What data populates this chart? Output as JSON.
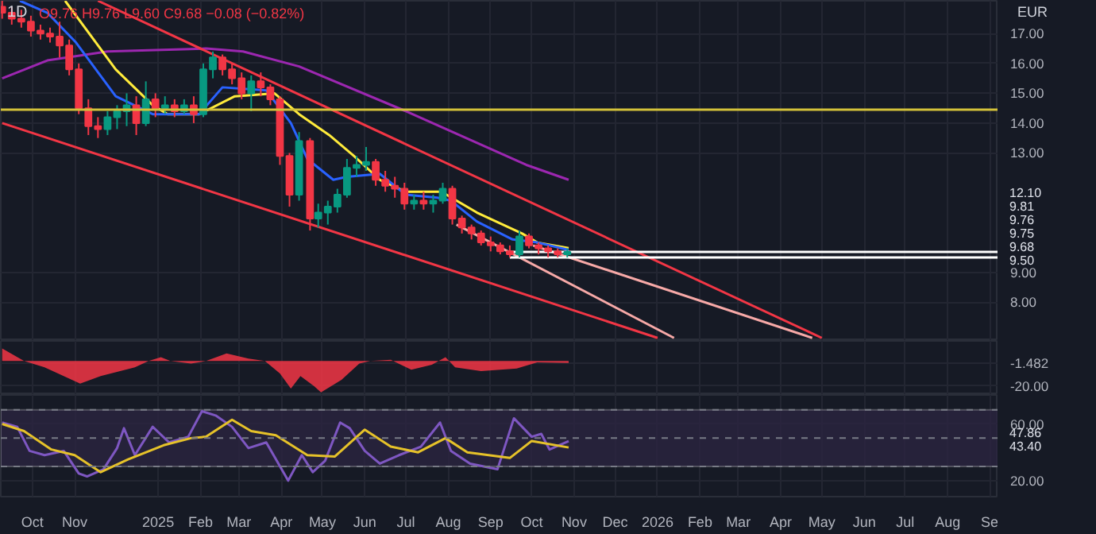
{
  "chart_data": [
    {
      "type": "candlestick",
      "title": "1D",
      "subtitle": "O9.76 H9.76 L9.60 C9.68 −0.08 (−0.82%)",
      "ylabel": "EUR",
      "annotations": [
        "12.10",
        "9.81",
        "9.76",
        "9.75",
        "9.68",
        "9.50"
      ],
      "x": [
        "2024-09-09",
        "2024-09-16",
        "2024-09-23",
        "2024-09-30",
        "2024-10-07",
        "2024-10-14",
        "2024-10-21",
        "2024-10-28",
        "2024-11-04",
        "2024-11-11",
        "2024-11-18",
        "2024-11-25",
        "2024-12-02",
        "2024-12-09",
        "2024-12-16",
        "2024-12-23",
        "2024-12-30",
        "2025-01-06",
        "2025-01-13",
        "2025-01-20",
        "2025-01-27",
        "2025-02-03",
        "2025-02-10",
        "2025-02-17",
        "2025-02-24",
        "2025-03-03",
        "2025-03-10",
        "2025-03-17",
        "2025-03-24",
        "2025-03-31",
        "2025-04-07",
        "2025-04-14",
        "2025-04-22",
        "2025-04-28",
        "2025-05-05",
        "2025-05-12",
        "2025-05-19",
        "2025-05-26",
        "2025-06-02",
        "2025-06-09",
        "2025-06-16",
        "2025-06-23",
        "2025-06-30",
        "2025-07-07",
        "2025-07-14",
        "2025-07-21",
        "2025-07-28",
        "2025-08-04",
        "2025-08-11",
        "2025-08-18",
        "2025-08-25",
        "2025-09-01",
        "2025-09-08",
        "2025-09-15",
        "2025-09-22",
        "2025-09-29",
        "2025-10-06",
        "2025-10-13",
        "2025-10-20",
        "2025-10-27"
      ],
      "ohlc": [
        [
          17.9,
          18.1,
          17.5,
          17.7
        ],
        [
          17.7,
          17.9,
          17.3,
          17.5
        ],
        [
          17.5,
          17.8,
          17.2,
          17.4
        ],
        [
          17.4,
          17.6,
          16.9,
          17.1
        ],
        [
          17.1,
          17.3,
          16.8,
          17.0
        ],
        [
          17.0,
          17.2,
          16.7,
          16.9
        ],
        [
          16.9,
          17.4,
          16.2,
          16.6
        ],
        [
          16.6,
          16.8,
          15.6,
          15.8
        ],
        [
          15.8,
          16.0,
          14.3,
          14.5
        ],
        [
          14.5,
          14.8,
          13.6,
          13.9
        ],
        [
          13.9,
          14.2,
          13.5,
          13.8
        ],
        [
          13.8,
          14.4,
          13.6,
          14.2
        ],
        [
          14.2,
          14.6,
          13.8,
          14.4
        ],
        [
          14.4,
          15.0,
          13.9,
          14.6
        ],
        [
          14.6,
          14.9,
          13.6,
          14.0
        ],
        [
          14.0,
          15.4,
          13.9,
          14.8
        ],
        [
          14.8,
          15.0,
          14.2,
          14.5
        ],
        [
          14.5,
          14.9,
          14.3,
          14.6
        ],
        [
          14.6,
          14.8,
          14.2,
          14.4
        ],
        [
          14.4,
          14.8,
          14.3,
          14.6
        ],
        [
          14.6,
          14.9,
          14.0,
          14.3
        ],
        [
          14.3,
          16.0,
          14.2,
          15.8
        ],
        [
          15.8,
          16.4,
          15.5,
          16.2
        ],
        [
          16.2,
          16.3,
          15.6,
          15.8
        ],
        [
          15.8,
          16.0,
          15.3,
          15.5
        ],
        [
          15.5,
          15.7,
          14.8,
          15.0
        ],
        [
          15.0,
          15.6,
          14.4,
          15.4
        ],
        [
          15.4,
          15.7,
          14.9,
          15.2
        ],
        [
          15.2,
          15.3,
          14.6,
          14.8
        ],
        [
          14.8,
          14.9,
          12.6,
          12.9
        ],
        [
          12.9,
          13.0,
          11.2,
          11.6
        ],
        [
          11.6,
          13.7,
          11.4,
          13.4
        ],
        [
          13.4,
          13.5,
          10.4,
          10.8
        ],
        [
          10.8,
          11.3,
          10.5,
          11.0
        ],
        [
          11.0,
          11.4,
          10.6,
          11.2
        ],
        [
          11.2,
          11.8,
          11.0,
          11.6
        ],
        [
          11.6,
          12.8,
          11.5,
          12.5
        ],
        [
          12.5,
          12.9,
          12.2,
          12.6
        ],
        [
          12.6,
          13.2,
          12.4,
          12.7
        ],
        [
          12.7,
          12.8,
          11.9,
          12.1
        ],
        [
          12.1,
          12.4,
          11.7,
          11.9
        ],
        [
          11.9,
          12.2,
          11.5,
          11.8
        ],
        [
          11.8,
          12.0,
          11.1,
          11.3
        ],
        [
          11.3,
          11.6,
          11.1,
          11.4
        ],
        [
          11.4,
          11.7,
          11.1,
          11.3
        ],
        [
          11.3,
          11.6,
          11.0,
          11.4
        ],
        [
          11.4,
          12.0,
          11.3,
          11.8
        ],
        [
          11.8,
          11.9,
          10.6,
          10.8
        ],
        [
          10.8,
          10.9,
          10.3,
          10.5
        ],
        [
          10.5,
          10.6,
          10.1,
          10.3
        ],
        [
          10.3,
          10.4,
          9.9,
          10.0
        ],
        [
          10.0,
          10.2,
          9.7,
          9.9
        ],
        [
          9.9,
          10.0,
          9.6,
          9.7
        ],
        [
          9.7,
          9.9,
          9.5,
          9.6
        ],
        [
          9.6,
          10.4,
          9.5,
          10.2
        ],
        [
          10.2,
          10.3,
          9.8,
          9.9
        ],
        [
          9.9,
          10.0,
          9.6,
          9.8
        ],
        [
          9.8,
          9.9,
          9.5,
          9.7
        ],
        [
          9.7,
          9.8,
          9.5,
          9.6
        ],
        [
          9.6,
          9.8,
          9.5,
          9.68
        ]
      ],
      "series": [
        {
          "type": "line",
          "color": "#9c27b0",
          "x": [
            "2024-09-09",
            "2024-10-12",
            "2024-11-25",
            "2025-02-05",
            "2025-03-04",
            "2025-04-14",
            "2025-07-01",
            "2025-09-27",
            "2025-10-28"
          ],
          "values": [
            15.5,
            16.1,
            16.4,
            16.5,
            16.4,
            15.9,
            14.4,
            12.6,
            12.1
          ]
        },
        {
          "type": "line",
          "color": "#ffeb3b",
          "x": [
            "2024-10-25",
            "2024-12-01",
            "2024-12-28",
            "2025-01-08",
            "2025-01-31",
            "2025-02-26",
            "2025-03-27",
            "2025-04-14",
            "2025-05-06",
            "2025-05-24",
            "2025-06-12",
            "2025-07-01",
            "2025-07-27",
            "2025-08-22",
            "2025-09-24",
            "2025-10-05",
            "2025-10-28"
          ],
          "values": [
            18.1,
            15.8,
            14.6,
            14.3,
            14.3,
            14.9,
            15.0,
            14.3,
            13.6,
            12.9,
            12.1,
            11.7,
            11.7,
            11.0,
            10.3,
            10.0,
            9.81
          ]
        },
        {
          "type": "line",
          "color": "#2962ff",
          "x": [
            "2024-09-22",
            "2024-10-12",
            "2024-11-02",
            "2024-12-01",
            "2024-12-28",
            "2025-01-31",
            "2025-02-17",
            "2025-03-21",
            "2025-04-08",
            "2025-04-20",
            "2025-05-09",
            "2025-05-19",
            "2025-06-12",
            "2025-07-01",
            "2025-07-24",
            "2025-08-03",
            "2025-08-22",
            "2025-09-17",
            "2025-10-05",
            "2025-10-28"
          ],
          "values": [
            18.1,
            17.7,
            16.7,
            14.9,
            14.3,
            14.3,
            15.2,
            15.1,
            14.0,
            12.8,
            12.1,
            12.2,
            12.3,
            11.6,
            11.5,
            11.4,
            10.7,
            10.1,
            10.0,
            9.75
          ]
        },
        {
          "type": "line",
          "color": "#f23645",
          "x": [
            "2024-11-18",
            "2026-05-01"
          ],
          "values": [
            18.1,
            6.8
          ]
        },
        {
          "type": "line",
          "color": "#f23645",
          "x": [
            "2024-09-09",
            "2026-01-01"
          ],
          "values": [
            14.0,
            6.8
          ]
        },
        {
          "type": "line",
          "color": "#f7a9a7",
          "x": [
            "2025-08-07",
            "2026-01-13"
          ],
          "values": [
            10.6,
            6.8
          ]
        },
        {
          "type": "line",
          "color": "#f7a9a7",
          "x": [
            "2025-10-02",
            "2026-04-24"
          ],
          "values": [
            9.9,
            6.8
          ]
        },
        {
          "type": "line",
          "color": "#ffffff",
          "x": [
            "2025-09-15",
            "2026-09-07"
          ],
          "values": [
            9.68,
            9.68
          ]
        },
        {
          "type": "line",
          "color": "#ffffff",
          "x": [
            "2025-09-15",
            "2026-09-07"
          ],
          "values": [
            9.5,
            9.5
          ]
        }
      ],
      "ref_lines": [
        {
          "axis": "y",
          "value": 14.45,
          "color": "#d4c23a"
        }
      ],
      "xlim": [
        "2024-09-08",
        "2026-09-07"
      ],
      "ylim": [
        6.7,
        18.1
      ],
      "yticks": [
        {
          "value": 8,
          "label": "8.00"
        },
        {
          "value": 9,
          "label": "9.00"
        },
        {
          "value": 13,
          "label": "13.00"
        },
        {
          "value": 14,
          "label": "14.00"
        },
        {
          "value": 15,
          "label": "15.00"
        },
        {
          "value": 16,
          "label": "16.00"
        },
        {
          "value": 17,
          "label": "17.00"
        }
      ],
      "tick_labels": "y",
      "grid": true
    },
    {
      "type": "area",
      "series": [
        {
          "color": "#f23645",
          "x": [
            "2024-09-09",
            "2024-09-25",
            "2024-10-10",
            "2024-11-05",
            "2024-11-20",
            "2024-12-15",
            "2024-12-25",
            "2025-01-03",
            "2025-01-10",
            "2025-01-25",
            "2025-02-05",
            "2025-02-20",
            "2025-03-08",
            "2025-03-20",
            "2025-03-31",
            "2025-04-08",
            "2025-04-15",
            "2025-04-25",
            "2025-04-30",
            "2025-05-15",
            "2025-05-28",
            "2025-06-05",
            "2025-06-20",
            "2025-07-05",
            "2025-07-20",
            "2025-07-30",
            "2025-08-06",
            "2025-08-25",
            "2025-09-20",
            "2025-10-05",
            "2025-10-28"
          ],
          "values": [
            10,
            0,
            -5,
            -18,
            -12,
            -5,
            0,
            3,
            0,
            -2,
            0,
            6,
            2,
            0,
            -10,
            -22,
            -12,
            -20,
            -25,
            -15,
            -2,
            0,
            1,
            -7,
            -3,
            3,
            -5,
            -8,
            -6,
            -1,
            -1.482
          ]
        }
      ],
      "xlim": [
        "2024-09-08",
        "2026-09-07"
      ],
      "ylim": [
        -27,
        16
      ],
      "yticks": [
        {
          "value": -20,
          "label": "-20.00"
        },
        {
          "value": -1.482,
          "label": "-1.482"
        }
      ],
      "tick_labels": "y",
      "grid": true
    },
    {
      "type": "line",
      "series": [
        {
          "color": "#7e57c2",
          "x": [
            "2024-09-09",
            "2024-09-20",
            "2024-09-29",
            "2024-10-10",
            "2024-10-24",
            "2024-11-04",
            "2024-11-10",
            "2024-11-22",
            "2024-12-02",
            "2024-12-07",
            "2024-12-15",
            "2024-12-28",
            "2025-01-09",
            "2025-01-23",
            "2025-02-02",
            "2025-02-12",
            "2025-02-24",
            "2025-03-08",
            "2025-03-21",
            "2025-04-06",
            "2025-04-16",
            "2025-04-24",
            "2025-05-03",
            "2025-05-14",
            "2025-05-21",
            "2025-06-01",
            "2025-06-12",
            "2025-06-26",
            "2025-07-12",
            "2025-07-26",
            "2025-08-03",
            "2025-08-17",
            "2025-09-06",
            "2025-09-18",
            "2025-10-01",
            "2025-10-08",
            "2025-10-14",
            "2025-10-28"
          ],
          "values": [
            61,
            58,
            41,
            38,
            41,
            25,
            23,
            28,
            43,
            57,
            38,
            58,
            47,
            51,
            69,
            66,
            58,
            43,
            47,
            20,
            38,
            26,
            34,
            61,
            57,
            41,
            32,
            38,
            44,
            61,
            41,
            32,
            28,
            64,
            51,
            53,
            42,
            47.86
          ]
        },
        {
          "color": "#e6c229",
          "x": [
            "2024-09-09",
            "2024-09-25",
            "2024-10-15",
            "2024-11-01",
            "2024-11-20",
            "2024-12-10",
            "2025-01-05",
            "2025-01-25",
            "2025-02-05",
            "2025-02-24",
            "2025-03-10",
            "2025-03-28",
            "2025-04-20",
            "2025-05-10",
            "2025-06-01",
            "2025-06-20",
            "2025-07-10",
            "2025-07-30",
            "2025-08-15",
            "2025-09-15",
            "2025-10-01",
            "2025-10-28"
          ],
          "values": [
            60,
            55,
            42,
            38,
            26,
            35,
            45,
            50,
            51,
            63,
            55,
            52,
            38,
            37,
            56,
            44,
            40,
            50,
            40,
            36,
            48,
            43.4
          ]
        }
      ],
      "ref_lines": [
        {
          "axis": "y",
          "value": 70,
          "line_style": "dashed"
        },
        {
          "axis": "y",
          "value": 50,
          "line_style": "dashed"
        },
        {
          "axis": "y",
          "value": 30,
          "line_style": "dashed"
        }
      ],
      "bands": [
        {
          "axis": "y",
          "from": 30,
          "to": 70,
          "color": "#2a2440"
        }
      ],
      "xlim": [
        "2024-09-08",
        "2026-09-07"
      ],
      "ylim": [
        8.7,
        80.5
      ],
      "annotations": [
        "47.86",
        "43.40"
      ],
      "yticks": [
        {
          "value": 20,
          "label": "20.00"
        },
        {
          "value": 60,
          "label": "60.00"
        }
      ],
      "xticks": [
        {
          "value": "2024-10-01",
          "label": "Oct"
        },
        {
          "value": "2024-11-01",
          "label": "Nov"
        },
        {
          "value": "2025-01-01",
          "label": "2025"
        },
        {
          "value": "2025-02-01",
          "label": "Feb"
        },
        {
          "value": "2025-03-01",
          "label": "Mar"
        },
        {
          "value": "2025-04-01",
          "label": "Apr"
        },
        {
          "value": "2025-05-01",
          "label": "May"
        },
        {
          "value": "2025-06-01",
          "label": "Jun"
        },
        {
          "value": "2025-07-01",
          "label": "Jul"
        },
        {
          "value": "2025-08-01",
          "label": "Aug"
        },
        {
          "value": "2025-09-01",
          "label": "Sep"
        },
        {
          "value": "2025-10-01",
          "label": "Oct"
        },
        {
          "value": "2025-11-01",
          "label": "Nov"
        },
        {
          "value": "2025-12-01",
          "label": "Dec"
        },
        {
          "value": "2026-01-01",
          "label": "2026"
        },
        {
          "value": "2026-02-01",
          "label": "Feb"
        },
        {
          "value": "2026-03-01",
          "label": "Mar"
        },
        {
          "value": "2026-04-01",
          "label": "Apr"
        },
        {
          "value": "2026-05-01",
          "label": "May"
        },
        {
          "value": "2026-06-01",
          "label": "Jun"
        },
        {
          "value": "2026-07-01",
          "label": "Jul"
        },
        {
          "value": "2026-08-01",
          "label": "Aug"
        },
        {
          "value": "2026-09-01",
          "label": "Se"
        }
      ],
      "grid": true
    }
  ]
}
